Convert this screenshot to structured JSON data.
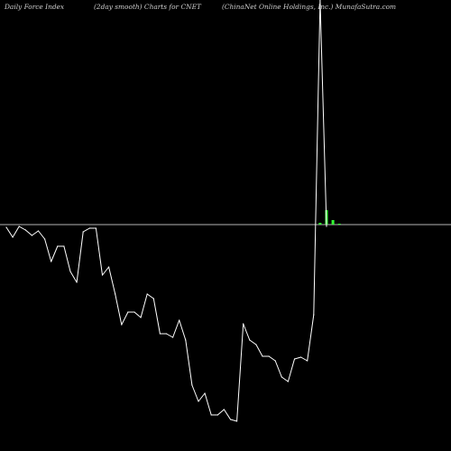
{
  "header": {
    "left": "Daily Force  Index",
    "middle": "(2day smooth) Charts for CNET",
    "right": "(ChinaNet Online  Holdings, Inc.) MunafaSutra.com"
  },
  "colors": {
    "background": "#000000",
    "line": "#ffffff",
    "zero_line": "#b4b4b4",
    "bars": "#33ff33"
  },
  "chart_data": {
    "type": "line",
    "title": "",
    "xlabel": "",
    "ylabel": "",
    "zero_level": 0,
    "ylim": [
      -220,
      248
    ],
    "series": [
      {
        "values": [
          -3,
          -14,
          -2,
          -6,
          -12,
          -7,
          -16,
          -41,
          -24,
          -24,
          -52,
          -64,
          -8,
          -4,
          -4,
          -56,
          -47,
          -77,
          -111,
          -97,
          -97,
          -103,
          -77,
          -82,
          -121,
          -121,
          -125,
          -106,
          -128,
          -178,
          -196,
          -187,
          -211,
          -211,
          -205,
          -216,
          -218,
          -110,
          -128,
          -133,
          -146,
          -146,
          -151,
          -169,
          -174,
          -149,
          -147,
          -151,
          -100,
          249,
          -2
        ]
      }
    ],
    "bars": [
      {
        "index": 49,
        "value": 2
      },
      {
        "index": 50,
        "value": 16
      },
      {
        "index": 51,
        "value": 5
      },
      {
        "index": 52,
        "value": 1
      }
    ]
  }
}
